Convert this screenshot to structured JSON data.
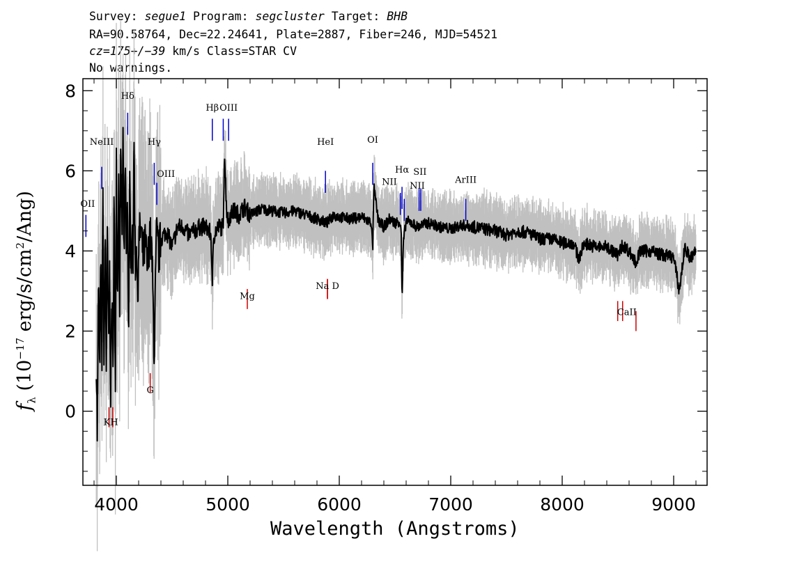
{
  "header": {
    "survey_label": "Survey:",
    "survey_value": "segue1",
    "program_label": "Program:",
    "program_value": "segcluster",
    "target_label": "Target:",
    "target_value": "BHB",
    "coords_line": "RA=90.58764, Dec=22.24641, Plate=2887, Fiber=246, MJD=54521",
    "cz_value": "cz=175+/−39",
    "cz_units_class": "km/s Class=STAR CV",
    "warnings": "No warnings."
  },
  "chart_data": {
    "type": "line",
    "xlabel": "Wavelength (Angstroms)",
    "ylabel": "fλ (10⁻¹⁷ erg/s/cm²/Ang)",
    "xlim": [
      3700,
      9300
    ],
    "ylim": [
      -1.85,
      8.3
    ],
    "xticks": [
      4000,
      5000,
      6000,
      7000,
      8000,
      9000
    ],
    "yticks": [
      0,
      2,
      4,
      6,
      8
    ],
    "grid": false,
    "series": [
      {
        "color": "#000000",
        "error_color": "#c0c0c0",
        "x": [
          3820,
          3830,
          3840,
          3850,
          3860,
          3870,
          3880,
          3890,
          3900,
          3910,
          3920,
          3930,
          3940,
          3950,
          3960,
          3970,
          3980,
          3990,
          4000,
          4010,
          4020,
          4030,
          4040,
          4050,
          4060,
          4070,
          4080,
          4090,
          4100,
          4110,
          4120,
          4130,
          4140,
          4150,
          4160,
          4170,
          4180,
          4190,
          4200,
          4220,
          4240,
          4260,
          4280,
          4300,
          4320,
          4340,
          4360,
          4380,
          4400,
          4450,
          4500,
          4550,
          4600,
          4650,
          4700,
          4750,
          4800,
          4830,
          4850,
          4861,
          4870,
          4890,
          4920,
          4959,
          4970,
          4990,
          5007,
          5020,
          5060,
          5100,
          5150,
          5200,
          5300,
          5400,
          5500,
          5600,
          5700,
          5800,
          5890,
          5950,
          6000,
          6100,
          6200,
          6290,
          6300,
          6310,
          6350,
          6400,
          6450,
          6500,
          6540,
          6555,
          6563,
          6575,
          6600,
          6650,
          6700,
          6800,
          6900,
          7000,
          7100,
          7200,
          7300,
          7400,
          7500,
          7600,
          7700,
          7800,
          7900,
          8000,
          8100,
          8150,
          8200,
          8300,
          8400,
          8500,
          8542,
          8600,
          8662,
          8700,
          8800,
          8900,
          9000,
          9050,
          9100,
          9150,
          9200
        ],
        "y": [
          1.4,
          -0.75,
          3.5,
          0.8,
          3.7,
          1.0,
          5.3,
          0.8,
          4.6,
          1.2,
          4.5,
          1.5,
          3.4,
          0.2,
          3.2,
          0.8,
          5.7,
          0.0,
          6.4,
          2.6,
          6.0,
          2.8,
          6.3,
          4.5,
          6.8,
          3.3,
          6.3,
          4.0,
          5.0,
          2.0,
          5.6,
          3.0,
          5.0,
          3.8,
          6.8,
          3.6,
          4.5,
          2.5,
          4.2,
          4.6,
          3.8,
          4.2,
          3.5,
          4.5,
          3.8,
          1.4,
          4.4,
          3.9,
          4.3,
          4.5,
          4.1,
          4.6,
          4.6,
          4.4,
          4.5,
          4.6,
          4.6,
          4.5,
          4.4,
          2.95,
          4.3,
          4.5,
          4.6,
          4.6,
          6.5,
          5.0,
          4.7,
          4.9,
          5.0,
          4.9,
          5.1,
          4.9,
          5.05,
          5.0,
          4.95,
          5.0,
          4.9,
          4.8,
          4.7,
          4.9,
          4.85,
          4.8,
          4.85,
          4.7,
          3.9,
          5.6,
          4.75,
          4.6,
          4.8,
          4.7,
          4.75,
          4.6,
          2.75,
          4.2,
          4.75,
          4.7,
          4.6,
          4.7,
          4.6,
          4.55,
          4.65,
          4.6,
          4.55,
          4.5,
          4.4,
          4.5,
          4.45,
          4.3,
          4.3,
          4.2,
          4.2,
          3.8,
          4.2,
          4.1,
          4.1,
          3.9,
          4.15,
          4.0,
          3.7,
          4.0,
          4.0,
          3.9,
          3.85,
          3.0,
          4.1,
          3.8,
          4.0
        ]
      }
    ],
    "blue_lines": [
      {
        "label": "OII",
        "x": 3727,
        "y": 4.9
      },
      {
        "label": "NeIII",
        "x": 3869,
        "y": 6.1
      },
      {
        "label": "Hδ",
        "x": 4102,
        "y": 7.45
      },
      {
        "label": "Hγ",
        "x": 4340,
        "y": 6.2
      },
      {
        "label": "OIII",
        "x": 4363,
        "y": 5.7
      },
      {
        "label": "Hβ",
        "x": 4861,
        "y": 7.3
      },
      {
        "label": "OIII",
        "x": 4959,
        "y": 7.3
      },
      {
        "label": "OIII",
        "x": 5007,
        "y": 7.3
      },
      {
        "label": "HeI",
        "x": 5876,
        "y": 6.0
      },
      {
        "label": "OI",
        "x": 6300,
        "y": 6.2
      },
      {
        "label": "NII",
        "x": 6548,
        "y": 5.45
      },
      {
        "label": "Hα",
        "x": 6563,
        "y": 5.6
      },
      {
        "label": "NII",
        "x": 6583,
        "y": 5.3
      },
      {
        "label": "SII",
        "x": 6716,
        "y": 5.55
      },
      {
        "label": "SII",
        "x": 6731,
        "y": 5.55
      },
      {
        "label": "ArIII",
        "x": 7135,
        "y": 5.3
      }
    ],
    "red_lines": [
      {
        "label": "K",
        "x": 3934,
        "y": 0.1
      },
      {
        "label": "H",
        "x": 3968,
        "y": 0.1
      },
      {
        "label": "G",
        "x": 4304,
        "y": 0.95
      },
      {
        "label": "Mg",
        "x": 5175,
        "y": 3.05
      },
      {
        "label": "Na",
        "x": 5894,
        "y": 3.3
      },
      {
        "label": "D",
        "x": 5894,
        "y": 3.3
      },
      {
        "label": "CaII",
        "x": 8498,
        "y": 2.75
      },
      {
        "label": "CaII",
        "x": 8542,
        "y": 2.75
      },
      {
        "label": "CaII",
        "x": 8662,
        "y": 2.5
      }
    ],
    "line_labels": {
      "OII": "OII",
      "NeIII": "NeIII",
      "Hdelta": "Hδ",
      "Hgamma": "Hγ",
      "OIII_a": "OIII",
      "Hbeta": "Hβ",
      "OIII_b": "OIII",
      "HeI": "HeI",
      "OI": "OI",
      "NII_a": "NII",
      "Halpha": "Hα",
      "NII_b": "NII",
      "SII": "SII",
      "ArIII": "ArIII",
      "KH": "KH",
      "G": "G",
      "Mg": "Mg",
      "NaD": "Na D",
      "CaII": "CaII"
    }
  }
}
